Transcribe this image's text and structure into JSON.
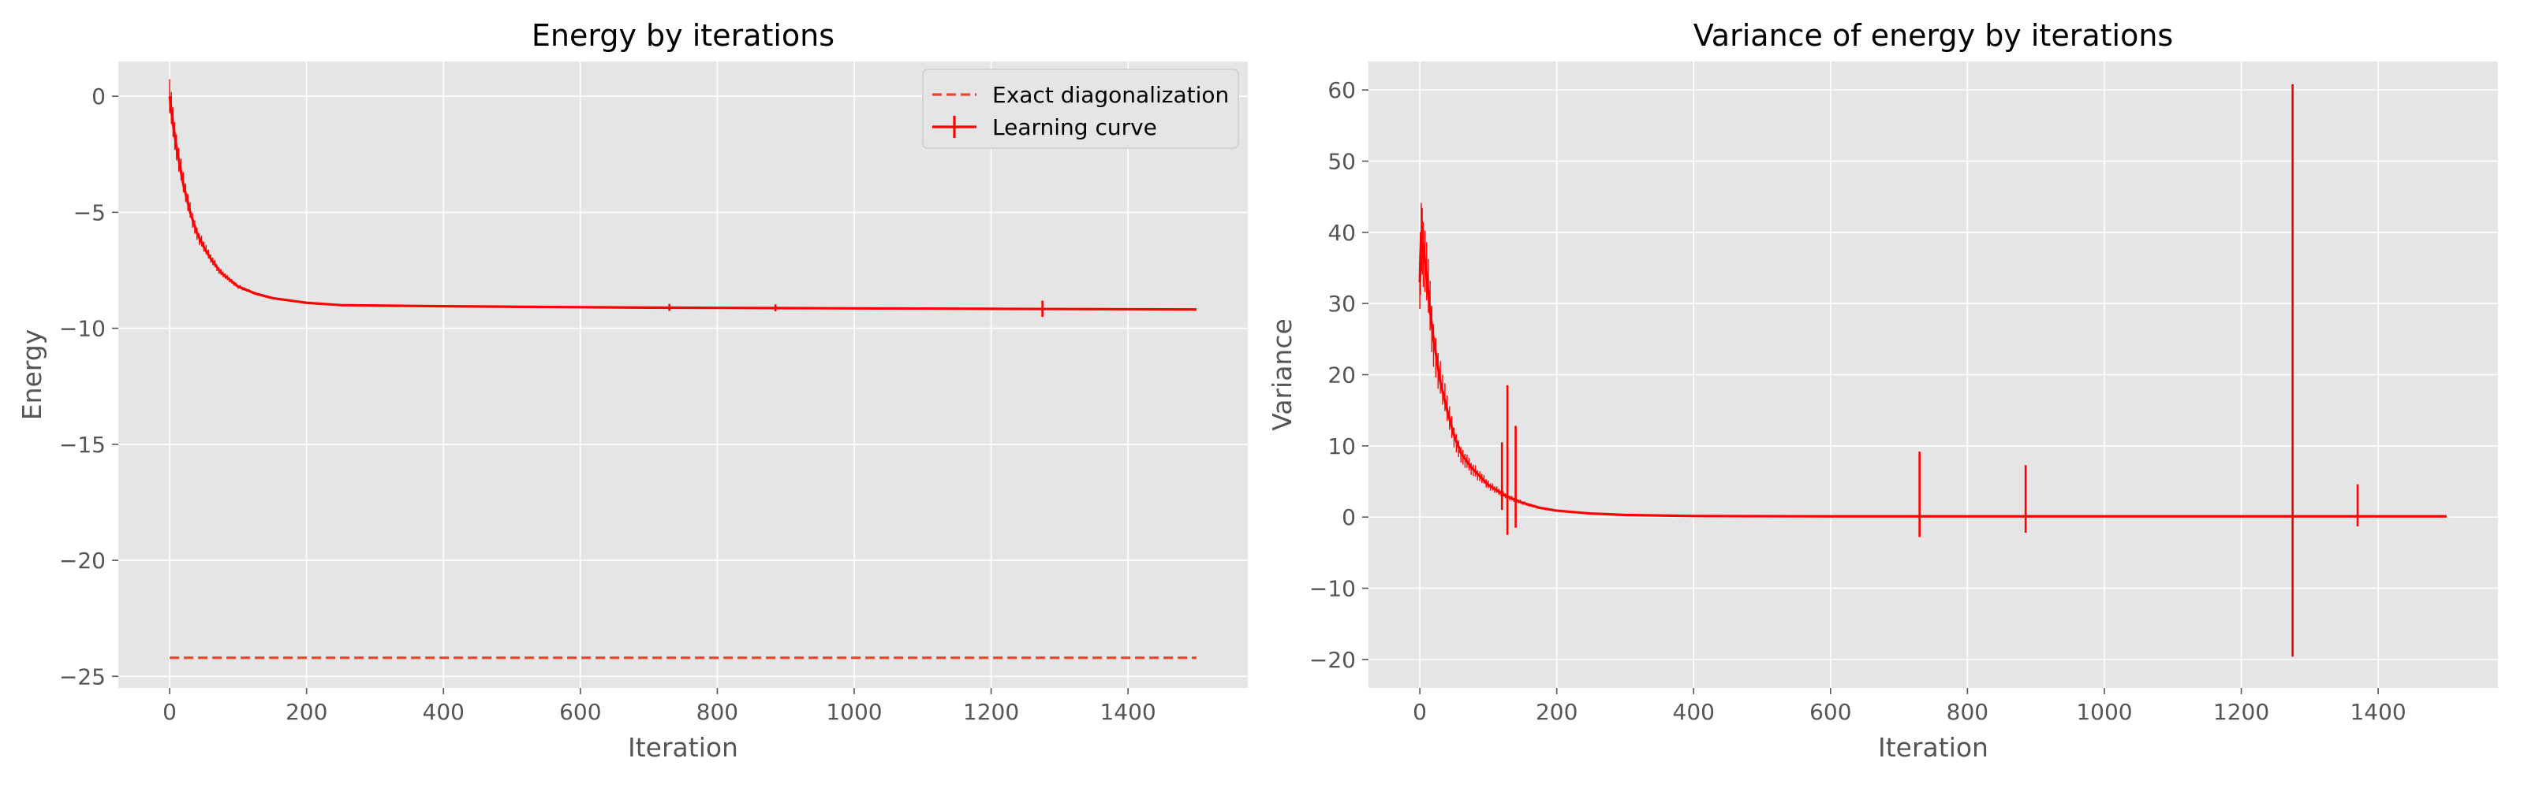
{
  "colors": {
    "plot_bg": "#E5E5E5",
    "grid": "#FFFFFF",
    "tick": "#555555",
    "series": "#FF0000",
    "exact": "#E24A33",
    "legend_bg": "#E5E5E5",
    "legend_edge": "#CCCCCC"
  },
  "chart_data": [
    {
      "type": "line",
      "title": "Energy by iterations",
      "xlabel": "Iteration",
      "ylabel": "Energy",
      "xlim": [
        -75,
        1575
      ],
      "ylim": [
        -25.5,
        1.5
      ],
      "xticks": [
        0,
        200,
        400,
        600,
        800,
        1000,
        1200,
        1400
      ],
      "yticks": [
        0,
        -5,
        -10,
        -15,
        -20,
        -25
      ],
      "ytick_labels": [
        "0",
        "−5",
        "−10",
        "−15",
        "−20",
        "−25"
      ],
      "grid": true,
      "legend": {
        "placement": "upper right",
        "entries": [
          "Exact diagonalization",
          "Learning curve"
        ]
      },
      "series": [
        {
          "name": "Exact diagonalization",
          "style": "dashed",
          "x": [
            0,
            1500
          ],
          "y": [
            -24.2,
            -24.2
          ]
        },
        {
          "name": "Learning curve",
          "style": "solid-errorbar",
          "x": [
            0,
            5,
            10,
            20,
            30,
            40,
            50,
            60,
            75,
            100,
            125,
            150,
            200,
            250,
            300,
            400,
            500,
            600,
            700,
            800,
            900,
            1000,
            1100,
            1200,
            1300,
            1400,
            1500
          ],
          "y": [
            0,
            -1.2,
            -2.2,
            -3.8,
            -5.0,
            -5.9,
            -6.5,
            -7.0,
            -7.6,
            -8.2,
            -8.5,
            -8.7,
            -8.9,
            -9.0,
            -9.02,
            -9.05,
            -9.07,
            -9.09,
            -9.11,
            -9.12,
            -9.13,
            -9.14,
            -9.15,
            -9.16,
            -9.17,
            -9.18,
            -9.19
          ],
          "error_spikes": [
            {
              "x": 730,
              "y": -9.1,
              "err": 0.15
            },
            {
              "x": 885,
              "y": -9.12,
              "err": 0.15
            },
            {
              "x": 1275,
              "y": -9.16,
              "err": 0.35
            }
          ]
        }
      ]
    },
    {
      "type": "line",
      "title": "Variance of energy by iterations",
      "xlabel": "Iteration",
      "ylabel": "Variance",
      "xlim": [
        -75,
        1575
      ],
      "ylim": [
        -24,
        64
      ],
      "xticks": [
        0,
        200,
        400,
        600,
        800,
        1000,
        1200,
        1400
      ],
      "yticks": [
        60,
        50,
        40,
        30,
        20,
        10,
        0,
        -10,
        -20
      ],
      "ytick_labels": [
        "60",
        "50",
        "40",
        "30",
        "20",
        "10",
        "0",
        "−10",
        "−20"
      ],
      "grid": true,
      "series": [
        {
          "style": "solid-errorbar",
          "x": [
            0,
            2,
            5,
            10,
            15,
            20,
            30,
            40,
            50,
            60,
            75,
            100,
            125,
            150,
            175,
            200,
            250,
            300,
            400,
            600,
            800,
            1000,
            1200,
            1400,
            1500
          ],
          "y": [
            33,
            40,
            38,
            34,
            29,
            25,
            19,
            15,
            11.5,
            9,
            7,
            4.5,
            3,
            2,
            1.3,
            0.9,
            0.5,
            0.3,
            0.15,
            0.1,
            0.1,
            0.1,
            0.1,
            0.1,
            0.1
          ],
          "error_spikes": [
            {
              "x": 120,
              "y_low": 1,
              "y_high": 10.5
            },
            {
              "x": 128,
              "y_low": -2.5,
              "y_high": 18.5
            },
            {
              "x": 140,
              "y_low": -1.5,
              "y_high": 12.8
            },
            {
              "x": 730,
              "y_low": -2.8,
              "y_high": 9.2
            },
            {
              "x": 885,
              "y_low": -2.2,
              "y_high": 7.3
            },
            {
              "x": 1275,
              "y_low": -19.6,
              "y_high": 60.8
            },
            {
              "x": 1370,
              "y_low": -1.3,
              "y_high": 4.6
            }
          ]
        }
      ]
    }
  ]
}
